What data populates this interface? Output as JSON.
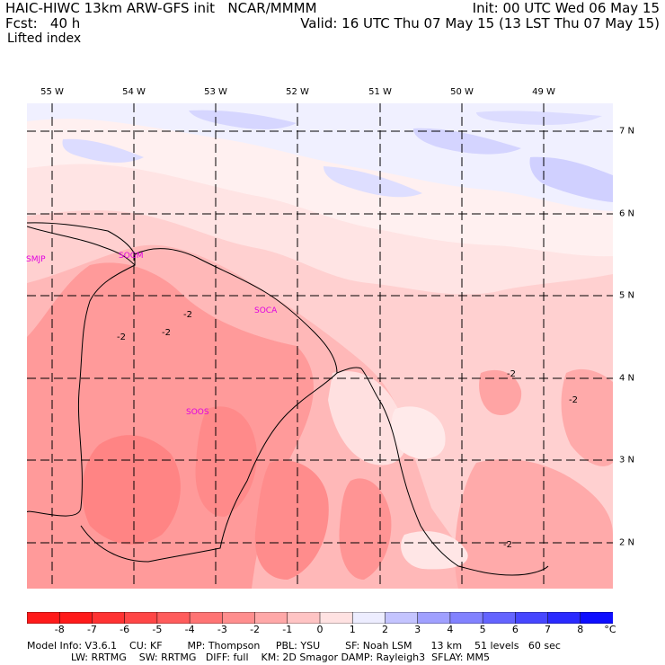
{
  "header": {
    "model": "HAIC-HIWC 13km ARW-GFS init   NCAR/MMMM",
    "forecast": "Fcst:   40 h",
    "field": "Lifted index",
    "init": "Init: 00 UTC Wed 06 May 15",
    "valid": "Valid: 16 UTC Thu 07 May 15 (13 LST Thu 07 May 15)"
  },
  "lon_labels": [
    "55 W",
    "54 W",
    "53 W",
    "52 W",
    "51 W",
    "50 W",
    "49 W"
  ],
  "lat_labels": [
    "7 N",
    "6 N",
    "5 N",
    "4 N",
    "3 N",
    "2 N"
  ],
  "stations": [
    "SMJP",
    "SOGM",
    "SOCA",
    "SOOS"
  ],
  "contour_labels": [
    "-2",
    "-2",
    "-2",
    "-2",
    "-2",
    "-2"
  ],
  "colorbar": {
    "unit": "°C",
    "labels": [
      "-8",
      "-7",
      "-6",
      "-5",
      "-4",
      "-3",
      "-2",
      "-1",
      "0",
      "1",
      "2",
      "3",
      "4",
      "5",
      "6",
      "7",
      "8"
    ],
    "colors": [
      "#ff1a1a",
      "#ff3232",
      "#ff4646",
      "#ff5c5c",
      "#ff7474",
      "#ff8e8e",
      "#ffa8a8",
      "#ffc4c4",
      "#ffe2e2",
      "#ededff",
      "#c4c4ff",
      "#a0a0ff",
      "#8282ff",
      "#6464ff",
      "#4646ff",
      "#2a2aff",
      "#0e0eff"
    ]
  },
  "model_info": {
    "line1": "Model Info: V3.6.1    CU: KF        MP: Thompson     PBL: YSU        SF: Noah LSM      13 km    51 levels   60 sec",
    "line2": "              LW: RRTMG    SW: RRTMG   DIFF: full    KM: 2D Smagor DAMP: Rayleigh3  SFLAY: MM5"
  }
}
